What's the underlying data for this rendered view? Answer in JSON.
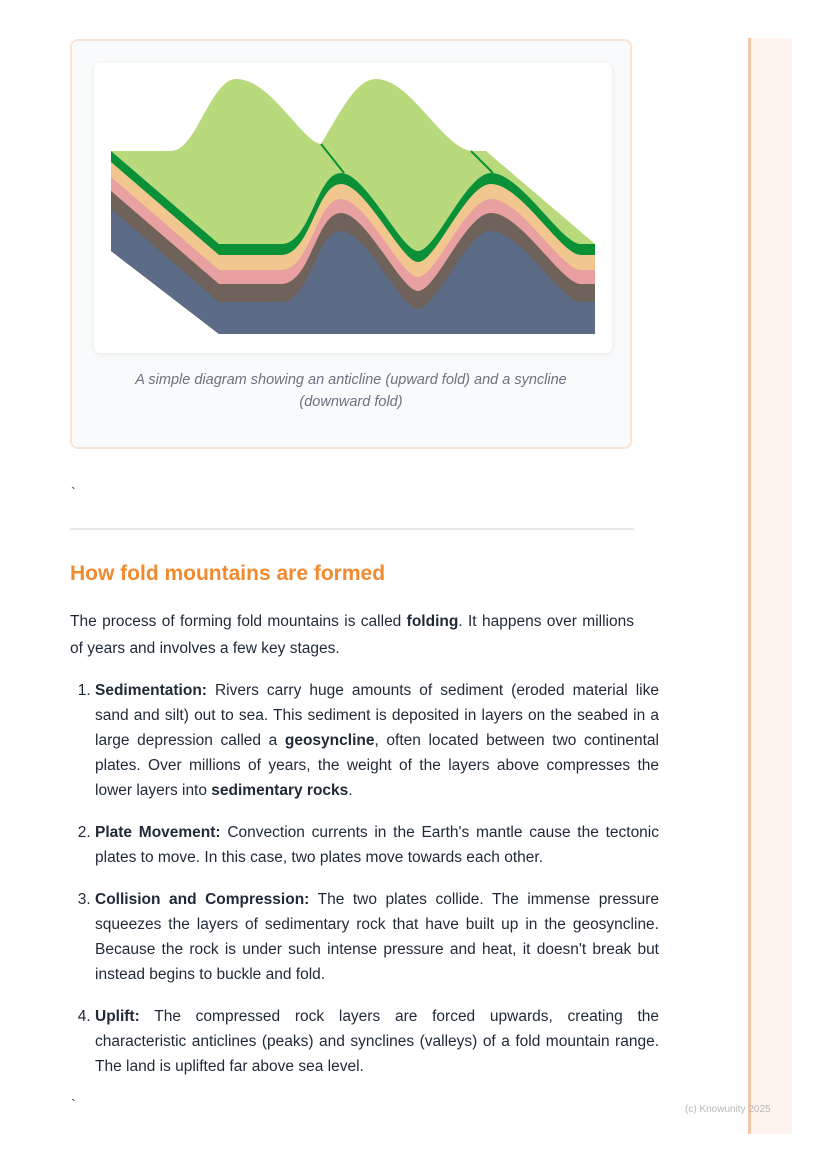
{
  "figure": {
    "caption": "A simple diagram showing an anticline (upward fold) and a syncline (downward fold)",
    "colors": {
      "surface": "#b8da7c",
      "top_layer": "#0a9138",
      "layer2": "#f1c68f",
      "layer3": "#e8a0a0",
      "layer4": "#6e625b",
      "base": "#5c6b86"
    }
  },
  "stray_marks": [
    "`",
    "`"
  ],
  "section": {
    "title": "How fold mountains are formed",
    "intro_before": "The process of forming fold mountains is called ",
    "intro_bold": "folding",
    "intro_after": ". It happens over millions of years and involves a few key stages.",
    "steps": [
      {
        "title": "Sedimentation:",
        "t1": " Rivers carry huge amounts of sediment (eroded material like sand and silt) out to sea. This sediment is deposited in layers on the seabed in a large depression called a ",
        "b1": "geosyncline",
        "t2": ", often located between two continental plates. Over millions of years, the weight of the layers above compresses the lower layers into ",
        "b2": "sedimentary rocks",
        "t3": "."
      },
      {
        "title": "Plate Movement:",
        "t1": " Convection currents in the Earth's mantle cause the tectonic plates to move. In this case, two plates move towards each other."
      },
      {
        "title": "Collision and Compression:",
        "t1": " The two plates collide. The immense pressure squeezes the layers of sedimentary rock that have built up in the geosyncline. Because the rock is under such intense pressure and heat, it doesn't break but instead begins to buckle and fold."
      },
      {
        "title": "Uplift:",
        "t1": " The compressed rock layers are forced upwards, creating the characteristic anticlines (peaks) and synclines (valleys) of a fold mountain range. The land is uplifted far above sea level."
      }
    ]
  },
  "footer": "(c) Knowunity 2025"
}
